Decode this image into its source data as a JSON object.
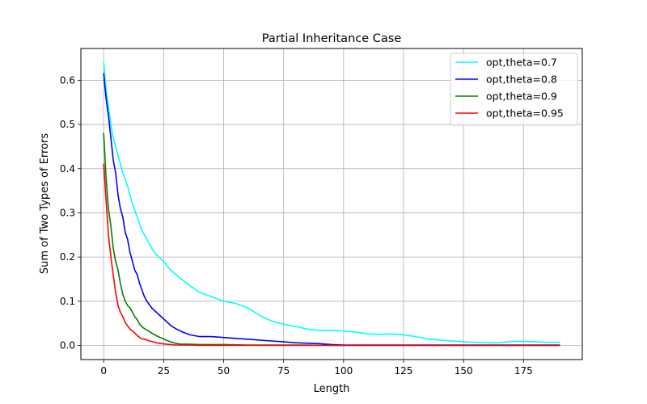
{
  "chart_data": {
    "type": "line",
    "title": "Partial Inheritance Case",
    "xlabel": "Length",
    "ylabel": "Sum of Two Types of Errors",
    "xlim": [
      -9.5,
      199.5
    ],
    "ylim": [
      -0.032,
      0.672
    ],
    "xticks": [
      0,
      25,
      50,
      75,
      100,
      125,
      150,
      175
    ],
    "yticks": [
      0.0,
      0.1,
      0.2,
      0.3,
      0.4,
      0.5,
      0.6
    ],
    "ytick_labels": [
      "0.0",
      "0.1",
      "0.2",
      "0.3",
      "0.4",
      "0.5",
      "0.6"
    ],
    "grid": true,
    "legend_position": "top-right",
    "series": [
      {
        "name": "opt,theta=0.7",
        "color": "#00ffff",
        "x": [
          0,
          1,
          2,
          3,
          4,
          5,
          6,
          7,
          8,
          10,
          12,
          14,
          16,
          18,
          20,
          22,
          25,
          28,
          32,
          36,
          40,
          45,
          50,
          55,
          60,
          63,
          66,
          70,
          75,
          80,
          85,
          90,
          95,
          100,
          105,
          110,
          115,
          120,
          125,
          130,
          135,
          140,
          145,
          150,
          155,
          160,
          165,
          170,
          175,
          180,
          185,
          190
        ],
        "y": [
          0.64,
          0.58,
          0.54,
          0.5,
          0.47,
          0.45,
          0.43,
          0.41,
          0.39,
          0.36,
          0.32,
          0.29,
          0.26,
          0.24,
          0.22,
          0.205,
          0.19,
          0.17,
          0.152,
          0.135,
          0.12,
          0.11,
          0.1,
          0.095,
          0.085,
          0.075,
          0.065,
          0.055,
          0.048,
          0.043,
          0.037,
          0.034,
          0.034,
          0.033,
          0.03,
          0.026,
          0.025,
          0.026,
          0.024,
          0.02,
          0.015,
          0.012,
          0.01,
          0.008,
          0.007,
          0.006,
          0.006,
          0.009,
          0.009,
          0.008,
          0.007,
          0.007
        ]
      },
      {
        "name": "opt,theta=0.8",
        "color": "#0000ff",
        "x": [
          0,
          1,
          2,
          3,
          4,
          5,
          6,
          7,
          8,
          9,
          10,
          11,
          12,
          13,
          14,
          15,
          16,
          17,
          18,
          20,
          22,
          24,
          26,
          28,
          30,
          33,
          36,
          40,
          45,
          50,
          55,
          60,
          65,
          70,
          75,
          80,
          85,
          90,
          95,
          100,
          110,
          120,
          130,
          140,
          150,
          160,
          170,
          180,
          190
        ],
        "y": [
          0.615,
          0.56,
          0.52,
          0.47,
          0.42,
          0.39,
          0.34,
          0.31,
          0.29,
          0.255,
          0.24,
          0.21,
          0.19,
          0.17,
          0.16,
          0.14,
          0.125,
          0.11,
          0.1,
          0.085,
          0.075,
          0.065,
          0.055,
          0.045,
          0.038,
          0.03,
          0.024,
          0.02,
          0.02,
          0.018,
          0.016,
          0.014,
          0.012,
          0.01,
          0.008,
          0.006,
          0.005,
          0.004,
          0.002,
          0.001,
          0.001,
          0.001,
          0.001,
          0.001,
          0.001,
          0.001,
          0.001,
          0.001,
          0.001
        ]
      },
      {
        "name": "opt,theta=0.9",
        "color": "#008000",
        "x": [
          0,
          1,
          2,
          3,
          4,
          5,
          6,
          7,
          8,
          9,
          10,
          11,
          12,
          13,
          14,
          15,
          16,
          17,
          18,
          19,
          20,
          22,
          24,
          26,
          28,
          30,
          32,
          35,
          40,
          50,
          60,
          70,
          80,
          100,
          120,
          140,
          160,
          190
        ],
        "y": [
          0.48,
          0.38,
          0.31,
          0.27,
          0.22,
          0.19,
          0.17,
          0.14,
          0.115,
          0.1,
          0.09,
          0.085,
          0.075,
          0.065,
          0.058,
          0.048,
          0.042,
          0.038,
          0.035,
          0.032,
          0.028,
          0.022,
          0.017,
          0.012,
          0.008,
          0.005,
          0.003,
          0.003,
          0.002,
          0.002,
          0.001,
          0.001,
          0.001,
          0.0,
          0.0,
          0.0,
          0.0,
          0.0
        ]
      },
      {
        "name": "opt,theta=0.95",
        "color": "#ff0000",
        "x": [
          0,
          1,
          2,
          3,
          4,
          5,
          6,
          7,
          8,
          9,
          10,
          11,
          12,
          13,
          14,
          15,
          16,
          17,
          18,
          19,
          20,
          22,
          24,
          26,
          28,
          30,
          35,
          40,
          50,
          60,
          80,
          100,
          120,
          140,
          160,
          190
        ],
        "y": [
          0.41,
          0.33,
          0.25,
          0.2,
          0.16,
          0.12,
          0.09,
          0.075,
          0.065,
          0.052,
          0.044,
          0.037,
          0.033,
          0.028,
          0.022,
          0.018,
          0.015,
          0.014,
          0.012,
          0.01,
          0.009,
          0.006,
          0.004,
          0.003,
          0.002,
          0.001,
          0.001,
          0.0,
          0.0,
          0.0,
          0.0,
          0.0,
          0.0,
          0.0,
          0.0,
          0.0
        ]
      }
    ]
  }
}
